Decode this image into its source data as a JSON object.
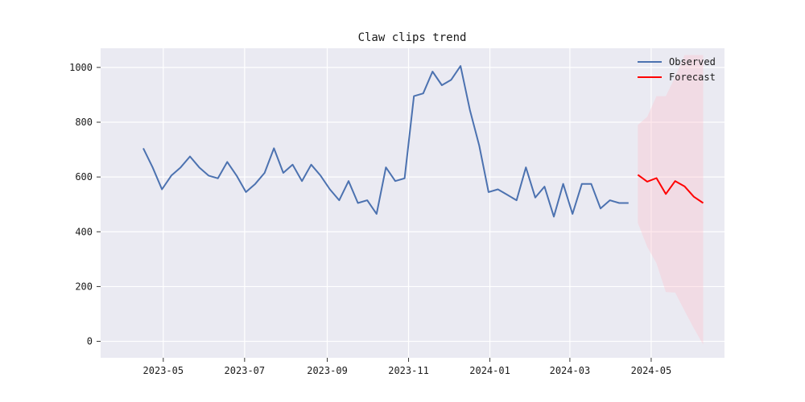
{
  "chart_data": {
    "type": "line",
    "title": "Claw clips trend",
    "xlabel": "",
    "ylabel": "",
    "x_axis": {
      "type": "date",
      "range": [
        "2023-03-15",
        "2024-06-25"
      ],
      "ticks": [
        "2023-05-01",
        "2023-07-01",
        "2023-09-01",
        "2023-11-01",
        "2024-01-01",
        "2024-03-01",
        "2024-05-01"
      ],
      "tick_labels": [
        "2023-05",
        "2023-07",
        "2023-09",
        "2023-11",
        "2024-01",
        "2024-03",
        "2024-05"
      ]
    },
    "y_axis": {
      "range": [
        -60,
        1070
      ],
      "ticks": [
        0,
        200,
        400,
        600,
        800,
        1000
      ],
      "tick_labels": [
        "0",
        "200",
        "400",
        "600",
        "800",
        "1000"
      ]
    },
    "grid": true,
    "legend_position": "top-right",
    "series": [
      {
        "name": "Observed",
        "color": "#4c72b0",
        "x": [
          "2023-04-16",
          "2023-04-23",
          "2023-04-30",
          "2023-05-07",
          "2023-05-14",
          "2023-05-21",
          "2023-05-28",
          "2023-06-04",
          "2023-06-11",
          "2023-06-18",
          "2023-06-25",
          "2023-07-02",
          "2023-07-09",
          "2023-07-16",
          "2023-07-23",
          "2023-07-30",
          "2023-08-06",
          "2023-08-13",
          "2023-08-20",
          "2023-08-27",
          "2023-09-03",
          "2023-09-10",
          "2023-09-17",
          "2023-09-24",
          "2023-10-01",
          "2023-10-08",
          "2023-10-15",
          "2023-10-22",
          "2023-10-29",
          "2023-11-05",
          "2023-11-12",
          "2023-11-19",
          "2023-11-26",
          "2023-12-03",
          "2023-12-10",
          "2023-12-17",
          "2023-12-24",
          "2023-12-31",
          "2024-01-07",
          "2024-01-14",
          "2024-01-21",
          "2024-01-28",
          "2024-02-04",
          "2024-02-11",
          "2024-02-18",
          "2024-02-25",
          "2024-03-03",
          "2024-03-10",
          "2024-03-17",
          "2024-03-24",
          "2024-03-31",
          "2024-04-07",
          "2024-04-14"
        ],
        "y": [
          705,
          635,
          555,
          605,
          635,
          675,
          635,
          605,
          595,
          655,
          605,
          545,
          575,
          615,
          705,
          615,
          645,
          585,
          645,
          605,
          555,
          515,
          585,
          505,
          515,
          465,
          635,
          585,
          595,
          895,
          905,
          985,
          935,
          955,
          1005,
          845,
          715,
          545,
          555,
          535,
          515,
          635,
          525,
          565,
          455,
          575,
          465,
          575,
          575,
          485,
          515,
          505,
          505
        ]
      },
      {
        "name": "Forecast",
        "color": "#ff0000",
        "x": [
          "2024-04-21",
          "2024-04-28",
          "2024-05-05",
          "2024-05-12",
          "2024-05-19",
          "2024-05-26",
          "2024-06-02",
          "2024-06-09"
        ],
        "y": [
          608,
          583,
          596,
          538,
          585,
          566,
          528,
          505
        ],
        "band": {
          "color": "#ffc0cb",
          "lower": [
            432,
            345,
            285,
            180,
            178,
            112,
            48,
            -12
          ],
          "upper": [
            790,
            820,
            895,
            895,
            965,
            1045,
            1045,
            1045
          ]
        }
      }
    ]
  }
}
